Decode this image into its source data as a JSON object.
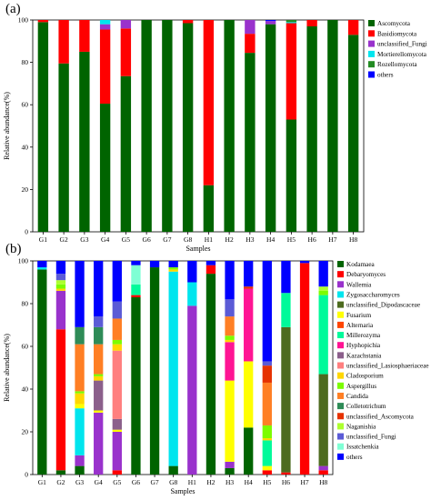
{
  "chart_data": [
    {
      "type": "bar",
      "stacked": true,
      "panel_label": "(a)",
      "xlabel": "Samples",
      "ylabel": "Relative abundance(%)",
      "ylim": [
        0,
        100
      ],
      "yticks": [
        0,
        20,
        40,
        60,
        80,
        100
      ],
      "legend_position": "right",
      "categories": [
        "G1",
        "G2",
        "G3",
        "G4",
        "G5",
        "G6",
        "G7",
        "G8",
        "H1",
        "H2",
        "H3",
        "H4",
        "H5",
        "H6",
        "H7",
        "H8"
      ],
      "series": [
        {
          "name": "Ascomycota",
          "color": "#006400",
          "values": [
            99,
            79.5,
            85,
            60.5,
            73.5,
            100,
            100,
            98.5,
            22,
            100,
            84.5,
            98,
            53,
            97,
            100,
            93
          ]
        },
        {
          "name": "Basidiomycota",
          "color": "#ff0000",
          "values": [
            1,
            20.5,
            15,
            35,
            22.5,
            0,
            0,
            1.5,
            78,
            0,
            9,
            0,
            45.5,
            3,
            0,
            7
          ]
        },
        {
          "name": "unclassified_Fungi",
          "color": "#9932cc",
          "values": [
            0,
            0,
            0,
            2.5,
            4,
            0,
            0,
            0,
            0,
            0,
            6.5,
            1.5,
            0,
            0,
            0,
            0
          ]
        },
        {
          "name": "Mortierellomycota",
          "color": "#00e5ee",
          "values": [
            0,
            0,
            0,
            2,
            0,
            0,
            0,
            0,
            0,
            0,
            0,
            0,
            0.5,
            0,
            0,
            0
          ]
        },
        {
          "name": "Rozellomycota",
          "color": "#228b22",
          "values": [
            0,
            0,
            0,
            0,
            0,
            0,
            0,
            0,
            0,
            0,
            0,
            0,
            1,
            0,
            0,
            0
          ]
        },
        {
          "name": "others",
          "color": "#0000ff",
          "values": [
            0,
            0,
            0,
            0,
            0,
            0,
            0,
            0,
            0,
            0,
            0,
            0.5,
            0,
            0,
            0,
            0
          ]
        }
      ]
    },
    {
      "type": "bar",
      "stacked": true,
      "panel_label": "(b)",
      "xlabel": "Samples",
      "ylabel": "Relative abundance(%)",
      "ylim": [
        0,
        100
      ],
      "yticks": [
        0,
        20,
        40,
        60,
        80,
        100
      ],
      "legend_position": "right",
      "categories": [
        "G1",
        "G2",
        "G3",
        "G4",
        "G5",
        "G6",
        "G7",
        "G8",
        "H1",
        "H2",
        "H3",
        "H4",
        "H5",
        "H6",
        "H7",
        "H8"
      ],
      "series": [
        {
          "name": "Kodamaea",
          "color": "#006400",
          "values": [
            96,
            2,
            4,
            0,
            0,
            83,
            97,
            4,
            0,
            94,
            3,
            22,
            0,
            0,
            0,
            0
          ]
        },
        {
          "name": "Debaryomyces",
          "color": "#ff0000",
          "values": [
            0,
            66,
            0,
            0,
            2,
            1,
            0,
            0,
            0,
            4,
            0,
            0,
            2,
            1,
            99,
            2
          ]
        },
        {
          "name": "Wallemia",
          "color": "#9932cc",
          "values": [
            0,
            18,
            5,
            29,
            18,
            0,
            0,
            0,
            79,
            0,
            3,
            0,
            0,
            0,
            0,
            2
          ]
        },
        {
          "name": "Zygosaccharomyces",
          "color": "#00e5ee",
          "values": [
            1,
            0,
            22,
            0,
            0,
            0,
            0,
            91,
            11,
            0,
            0,
            0,
            0,
            0,
            0,
            0
          ]
        },
        {
          "name": "unclassified_Dipodascaceae",
          "color": "#4d6b1f",
          "values": [
            0,
            0,
            0,
            0,
            0,
            0,
            0,
            0,
            0,
            0,
            0,
            0,
            0,
            68,
            0,
            43
          ]
        },
        {
          "name": "Fusarium",
          "color": "#ffff00",
          "values": [
            0,
            0,
            2,
            1,
            1,
            0,
            0,
            0,
            0,
            0,
            38,
            31,
            2,
            0,
            0,
            0
          ]
        },
        {
          "name": "Alternaria",
          "color": "#ff4500",
          "values": [
            0,
            0,
            0,
            0,
            0,
            0,
            0,
            0,
            0,
            0,
            0,
            0,
            0,
            0,
            0,
            0
          ]
        },
        {
          "name": "Millerozyma",
          "color": "#00fa9a",
          "values": [
            0,
            0,
            0,
            0,
            0,
            5,
            0,
            0,
            0,
            0,
            0,
            0,
            12,
            16,
            0,
            37
          ]
        },
        {
          "name": "Hyphopichia",
          "color": "#ff1493",
          "values": [
            0,
            0,
            0,
            0,
            0,
            0,
            0,
            0,
            0,
            0,
            18,
            34,
            0,
            0,
            0,
            0
          ]
        },
        {
          "name": "Kazachstania",
          "color": "#8b5f8b",
          "values": [
            0,
            0,
            0,
            14,
            5,
            0,
            0,
            0,
            0,
            0,
            0,
            0,
            0,
            0,
            0,
            0
          ]
        },
        {
          "name": "unclassified_Lasiosphaeriaceae",
          "color": "#ff7f7f",
          "values": [
            0,
            0,
            0,
            0,
            32,
            0,
            0,
            0,
            0,
            0,
            0,
            0,
            0,
            0,
            0,
            0
          ]
        },
        {
          "name": "Cladosporium",
          "color": "#ffd700",
          "values": [
            0,
            1,
            5,
            2,
            3,
            0,
            0,
            1,
            0,
            0,
            1,
            0,
            1,
            0,
            0,
            0
          ]
        },
        {
          "name": "Aspergillus",
          "color": "#7cfc00",
          "values": [
            0,
            2,
            1,
            1,
            2,
            0,
            0,
            1,
            0,
            0,
            2,
            0,
            6,
            0,
            0,
            2
          ]
        },
        {
          "name": "Candida",
          "color": "#ff7f24",
          "values": [
            0,
            0,
            22,
            14,
            10,
            0,
            0,
            0,
            0,
            0,
            9,
            0,
            20,
            0,
            0,
            0
          ]
        },
        {
          "name": "Colletotrichum",
          "color": "#2e8b57",
          "values": [
            0,
            0,
            8,
            8,
            0,
            0,
            0,
            0,
            0,
            0,
            0,
            0,
            0,
            0,
            0,
            0
          ]
        },
        {
          "name": "unclassified_Ascomycota",
          "color": "#e63200",
          "values": [
            0,
            0,
            0,
            0,
            0,
            0,
            0,
            0,
            0,
            0,
            0,
            1,
            8,
            0,
            0,
            0
          ]
        },
        {
          "name": "Naganishia",
          "color": "#adff2f",
          "values": [
            0,
            2,
            0,
            0,
            0,
            0,
            0,
            0,
            0,
            0,
            0,
            0,
            0,
            0,
            0,
            2
          ]
        },
        {
          "name": "unclassified_Fungi",
          "color": "#5b5bd6",
          "values": [
            0,
            3,
            0,
            5,
            8,
            0,
            0,
            0,
            0,
            0,
            8,
            0,
            2,
            0,
            0,
            0
          ]
        },
        {
          "name": "Issatchenkia",
          "color": "#7fffd4",
          "values": [
            0,
            0,
            0,
            0,
            0,
            9,
            0,
            0,
            0,
            0,
            0,
            0,
            0,
            0,
            0,
            0
          ]
        },
        {
          "name": "others",
          "color": "#0000ff",
          "values": [
            3,
            6,
            31,
            26,
            19,
            2,
            3,
            3,
            10,
            2,
            18,
            12,
            47,
            15,
            1,
            12
          ]
        }
      ]
    }
  ]
}
